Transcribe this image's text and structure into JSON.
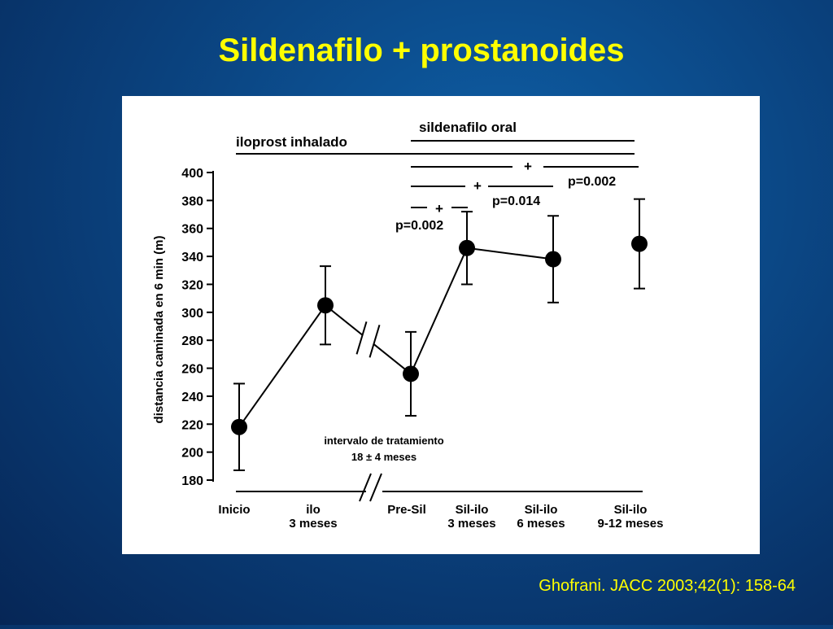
{
  "slide": {
    "title": "Sildenafilo + prostanoides",
    "citation": "Ghofrani. JACC 2003;42(1): 158-64"
  },
  "chart_data": {
    "type": "line",
    "ylabel": "distancia caminada en 6 min (m)",
    "categories": [
      [
        "Inicio"
      ],
      [
        "ilo",
        "3 meses"
      ],
      [
        "Pre-Sil"
      ],
      [
        "Sil-ilo",
        "3 meses"
      ],
      [
        "Sil-ilo",
        "6 meses"
      ],
      [
        "Sil-ilo",
        "9-12 meses"
      ]
    ],
    "series": [
      {
        "values": [
          218,
          305,
          256,
          346,
          338,
          349
        ],
        "errors": [
          31,
          28,
          30,
          26,
          31,
          32
        ],
        "color": "#000000"
      }
    ],
    "connected_to_next": [
      true,
      true,
      true,
      true,
      false,
      false
    ],
    "ylim": [
      180,
      400
    ],
    "yticks": [
      180,
      200,
      220,
      240,
      260,
      280,
      300,
      320,
      340,
      360,
      380,
      400
    ],
    "annotations": {
      "iloprost": "iloprost inhalado",
      "sildenafil": "sildenafilo oral",
      "plus": "+",
      "p1": "p=0.002",
      "p2": "p=0.014",
      "p3": "p=0.002",
      "interval": "intervalo de tratamiento",
      "interval_value": "18 ± 4 meses"
    }
  }
}
